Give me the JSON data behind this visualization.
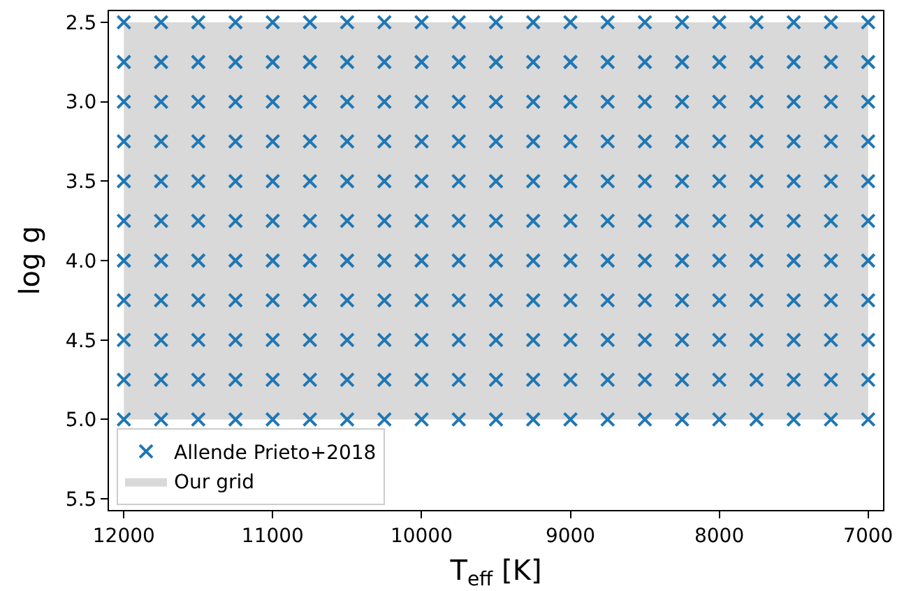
{
  "chart_data": {
    "type": "scatter",
    "xlabel": "T$_{eff}$ [K]",
    "ylabel": "log g",
    "xlim": [
      12100,
      6900
    ],
    "xticks": [
      12000,
      11000,
      10000,
      9000,
      8000,
      7000
    ],
    "ylim": [
      5.57,
      2.43
    ],
    "yticks": [
      2.5,
      {
        "value": 3,
        "label": "3.0"
      },
      3.5,
      {
        "value": 4,
        "label": "4.0"
      },
      4.5,
      {
        "value": 5,
        "label": "5.0"
      },
      5.5
    ],
    "marker": "cross",
    "grid": false,
    "legend": "bottom left",
    "bands": [
      {
        "axis": "y",
        "from": 2.5,
        "to": 5.0,
        "label": "Our grid",
        "color": "#d9d9d9"
      }
    ],
    "series": [
      {
        "name": "Allende Prieto+2018",
        "color": "#1f77b4",
        "x": [
          12000,
          11750,
          11500,
          11250,
          11000,
          10750,
          10500,
          10250,
          10000,
          9750,
          9500,
          9250,
          9000,
          8750,
          8500,
          8250,
          8000,
          7750,
          7500,
          7250,
          7000,
          12000,
          11750,
          11500,
          11250,
          11000,
          10750,
          10500,
          10250,
          10000,
          9750,
          9500,
          9250,
          9000,
          8750,
          8500,
          8250,
          8000,
          7750,
          7500,
          7250,
          7000,
          12000,
          11750,
          11500,
          11250,
          11000,
          10750,
          10500,
          10250,
          10000,
          9750,
          9500,
          9250,
          9000,
          8750,
          8500,
          8250,
          8000,
          7750,
          7500,
          7250,
          7000,
          12000,
          11750,
          11500,
          11250,
          11000,
          10750,
          10500,
          10250,
          10000,
          9750,
          9500,
          9250,
          9000,
          8750,
          8500,
          8250,
          8000,
          7750,
          7500,
          7250,
          7000,
          12000,
          11750,
          11500,
          11250,
          11000,
          10750,
          10500,
          10250,
          10000,
          9750,
          9500,
          9250,
          9000,
          8750,
          8500,
          8250,
          8000,
          7750,
          7500,
          7250,
          7000,
          12000,
          11750,
          11500,
          11250,
          11000,
          10750,
          10500,
          10250,
          10000,
          9750,
          9500,
          9250,
          9000,
          8750,
          8500,
          8250,
          8000,
          7750,
          7500,
          7250,
          7000,
          12000,
          11750,
          11500,
          11250,
          11000,
          10750,
          10500,
          10250,
          10000,
          9750,
          9500,
          9250,
          9000,
          8750,
          8500,
          8250,
          8000,
          7750,
          7500,
          7250,
          7000,
          12000,
          11750,
          11500,
          11250,
          11000,
          10750,
          10500,
          10250,
          10000,
          9750,
          9500,
          9250,
          9000,
          8750,
          8500,
          8250,
          8000,
          7750,
          7500,
          7250,
          7000,
          12000,
          11750,
          11500,
          11250,
          11000,
          10750,
          10500,
          10250,
          10000,
          9750,
          9500,
          9250,
          9000,
          8750,
          8500,
          8250,
          8000,
          7750,
          7500,
          7250,
          7000,
          12000,
          11750,
          11500,
          11250,
          11000,
          10750,
          10500,
          10250,
          10000,
          9750,
          9500,
          9250,
          9000,
          8750,
          8500,
          8250,
          8000,
          7750,
          7500,
          7250,
          7000,
          12000,
          11750,
          11500,
          11250,
          11000,
          10750,
          10500,
          10250,
          10000,
          9750,
          9500,
          9250,
          9000,
          8750,
          8500,
          8250,
          8000,
          7750,
          7500,
          7250,
          7000
        ],
        "values": [
          2.5,
          2.5,
          2.5,
          2.5,
          2.5,
          2.5,
          2.5,
          2.5,
          2.5,
          2.5,
          2.5,
          2.5,
          2.5,
          2.5,
          2.5,
          2.5,
          2.5,
          2.5,
          2.5,
          2.5,
          2.5,
          2.75,
          2.75,
          2.75,
          2.75,
          2.75,
          2.75,
          2.75,
          2.75,
          2.75,
          2.75,
          2.75,
          2.75,
          2.75,
          2.75,
          2.75,
          2.75,
          2.75,
          2.75,
          2.75,
          2.75,
          2.75,
          3.0,
          3.0,
          3.0,
          3.0,
          3.0,
          3.0,
          3.0,
          3.0,
          3.0,
          3.0,
          3.0,
          3.0,
          3.0,
          3.0,
          3.0,
          3.0,
          3.0,
          3.0,
          3.0,
          3.0,
          3.0,
          3.25,
          3.25,
          3.25,
          3.25,
          3.25,
          3.25,
          3.25,
          3.25,
          3.25,
          3.25,
          3.25,
          3.25,
          3.25,
          3.25,
          3.25,
          3.25,
          3.25,
          3.25,
          3.25,
          3.25,
          3.25,
          3.5,
          3.5,
          3.5,
          3.5,
          3.5,
          3.5,
          3.5,
          3.5,
          3.5,
          3.5,
          3.5,
          3.5,
          3.5,
          3.5,
          3.5,
          3.5,
          3.5,
          3.5,
          3.5,
          3.5,
          3.5,
          3.75,
          3.75,
          3.75,
          3.75,
          3.75,
          3.75,
          3.75,
          3.75,
          3.75,
          3.75,
          3.75,
          3.75,
          3.75,
          3.75,
          3.75,
          3.75,
          3.75,
          3.75,
          3.75,
          3.75,
          3.75,
          4.0,
          4.0,
          4.0,
          4.0,
          4.0,
          4.0,
          4.0,
          4.0,
          4.0,
          4.0,
          4.0,
          4.0,
          4.0,
          4.0,
          4.0,
          4.0,
          4.0,
          4.0,
          4.0,
          4.0,
          4.0,
          4.25,
          4.25,
          4.25,
          4.25,
          4.25,
          4.25,
          4.25,
          4.25,
          4.25,
          4.25,
          4.25,
          4.25,
          4.25,
          4.25,
          4.25,
          4.25,
          4.25,
          4.25,
          4.25,
          4.25,
          4.25,
          4.5,
          4.5,
          4.5,
          4.5,
          4.5,
          4.5,
          4.5,
          4.5,
          4.5,
          4.5,
          4.5,
          4.5,
          4.5,
          4.5,
          4.5,
          4.5,
          4.5,
          4.5,
          4.5,
          4.5,
          4.5,
          4.75,
          4.75,
          4.75,
          4.75,
          4.75,
          4.75,
          4.75,
          4.75,
          4.75,
          4.75,
          4.75,
          4.75,
          4.75,
          4.75,
          4.75,
          4.75,
          4.75,
          4.75,
          4.75,
          4.75,
          4.75,
          5.0,
          5.0,
          5.0,
          5.0,
          5.0,
          5.0,
          5.0,
          5.0,
          5.0,
          5.0,
          5.0,
          5.0,
          5.0,
          5.0,
          5.0,
          5.0,
          5.0,
          5.0,
          5.0,
          5.0,
          5.0
        ]
      }
    ]
  }
}
